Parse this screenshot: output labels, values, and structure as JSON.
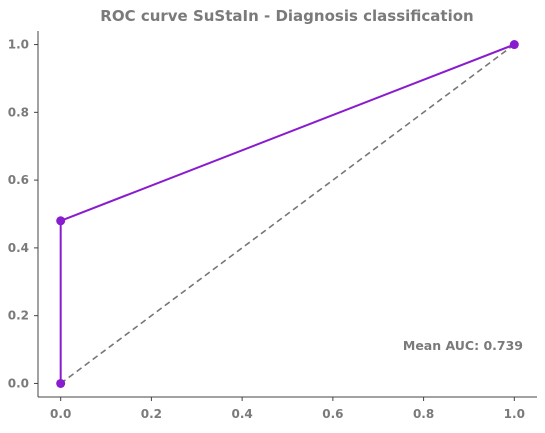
{
  "chart_data": {
    "type": "line",
    "title": "ROC curve SuStaIn - Diagnosis classification",
    "xlabel": "",
    "ylabel": "",
    "xlim": [
      -0.05,
      1.05
    ],
    "ylim": [
      -0.04,
      1.04
    ],
    "x_ticks": [
      "0.0",
      "0.2",
      "0.4",
      "0.6",
      "0.8",
      "1.0"
    ],
    "y_ticks": [
      "0.0",
      "0.2",
      "0.4",
      "0.6",
      "0.8",
      "1.0"
    ],
    "grid": false,
    "series": [
      {
        "x": [
          0.0,
          0.0,
          1.0
        ],
        "y": [
          0.0,
          0.48,
          1.0
        ],
        "color": "#8a1ccf",
        "markers": true
      },
      {
        "x": [
          0.0,
          1.0
        ],
        "y": [
          0.0,
          1.0
        ],
        "color": "#777777",
        "style": "dashed"
      }
    ],
    "annotation": "Mean AUC: 0.739"
  }
}
